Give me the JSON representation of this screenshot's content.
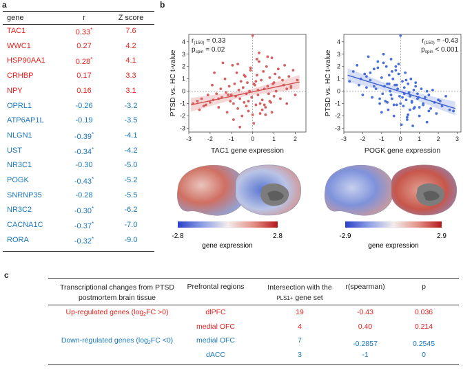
{
  "panel_labels": {
    "a": "a",
    "b": "b",
    "c": "c"
  },
  "colors": {
    "up": "#e8201c",
    "down": "#1a78be",
    "scatter_red": "#d65f5f",
    "scatter_blue": "#4a6fd9"
  },
  "table_a": {
    "headers": [
      "gene",
      "r",
      "Z score"
    ],
    "rows": [
      {
        "gene": "TAC1",
        "r": "0.33",
        "star": "*",
        "z": "7.6",
        "dir": "up"
      },
      {
        "gene": "WWC1",
        "r": "0.27",
        "star": "",
        "z": "4.2",
        "dir": "up"
      },
      {
        "gene": "HSP90AA1",
        "r": "0.28",
        "star": "*",
        "z": "4.1",
        "dir": "up"
      },
      {
        "gene": "CRHBP",
        "r": "0.17",
        "star": "",
        "z": "3.3",
        "dir": "up"
      },
      {
        "gene": "NPY",
        "r": "0.16",
        "star": "",
        "z": "3.1",
        "dir": "up"
      },
      {
        "gene": "OPRL1",
        "r": "-0.26",
        "star": "",
        "z": "-3.2",
        "dir": "down"
      },
      {
        "gene": "ATP6AP1L",
        "r": "-0.19",
        "star": "",
        "z": "-3.5",
        "dir": "down"
      },
      {
        "gene": "NLGN1",
        "r": "-0.39",
        "star": "*",
        "z": "-4.1",
        "dir": "down"
      },
      {
        "gene": "UST",
        "r": "-0.34",
        "star": "*",
        "z": "-4.2",
        "dir": "down"
      },
      {
        "gene": "NR3C1",
        "r": "-0.30",
        "star": "",
        "z": "-5.0",
        "dir": "down"
      },
      {
        "gene": "POGK",
        "r": "-0.43",
        "star": "*",
        "z": "-5.2",
        "dir": "down"
      },
      {
        "gene": "SNRNP35",
        "r": "-0.28",
        "star": "",
        "z": "-5.5",
        "dir": "down"
      },
      {
        "gene": "NR3C2",
        "r": "-0.30",
        "star": "*",
        "z": "-6.2",
        "dir": "down"
      },
      {
        "gene": "CACNA1C",
        "r": "-0.37",
        "star": "*",
        "z": "-7.0",
        "dir": "down"
      },
      {
        "gene": "RORA",
        "r": "-0.32",
        "star": "*",
        "z": "-9.0",
        "dir": "down"
      }
    ]
  },
  "chart_data": [
    {
      "type": "scatter",
      "title": "",
      "xlabel": "TAC1 gene expression",
      "ylabel": "PTSD vs. HC t-value",
      "xlim": [
        -3,
        2.5
      ],
      "ylim": [
        -3.3,
        4.6
      ],
      "xticks": [
        -3,
        -2,
        -1,
        0,
        1,
        2
      ],
      "yticks": [
        -3,
        -2,
        -1,
        0,
        1,
        2,
        3,
        4
      ],
      "annotation": {
        "r_label": "r",
        "r_sub": "(150)",
        "r_value": "= 0.33",
        "p_label": "p",
        "p_sub": "spin",
        "p_value": "= 0.02"
      },
      "fit": {
        "x": [
          -2.9,
          2.2
        ],
        "y": [
          -1.1,
          0.75
        ]
      },
      "x": [
        -2.8,
        -2.6,
        -2.5,
        -2.4,
        -2.3,
        -2.1,
        -2.0,
        -1.9,
        -1.85,
        -1.7,
        -1.6,
        -1.5,
        -1.45,
        -1.3,
        -1.25,
        -1.2,
        -1.1,
        -1.05,
        -1.0,
        -0.95,
        -0.9,
        -0.85,
        -0.8,
        -0.75,
        -0.7,
        -0.65,
        -0.6,
        -0.55,
        -0.5,
        -0.45,
        -0.4,
        -0.35,
        -0.3,
        -0.25,
        -0.2,
        -0.15,
        -0.1,
        -0.05,
        0.0,
        0.05,
        0.1,
        0.15,
        0.2,
        0.25,
        0.3,
        0.35,
        0.4,
        0.45,
        0.5,
        0.55,
        0.6,
        0.65,
        0.7,
        0.75,
        0.8,
        0.85,
        0.9,
        0.95,
        1.0,
        1.05,
        1.1,
        1.2,
        1.3,
        1.4,
        1.5,
        1.6,
        1.7,
        1.8,
        1.9,
        2.0,
        2.1,
        -1.4,
        -0.9,
        -0.3,
        0.2,
        0.6,
        1.0,
        -0.6,
        0.3,
        0.8,
        -1.8,
        -0.2,
        0.45,
        1.25,
        -1.15,
        0.0,
        0.7,
        -2.2,
        1.6,
        -0.7,
        0.15,
        0.9,
        -0.4,
        0.55,
        1.45,
        -1.6,
        0.05,
        0.35,
        -0.1,
        0.25,
        1.8
      ],
      "y": [
        -1.0,
        -0.8,
        -1.5,
        -0.6,
        -1.2,
        -0.3,
        -0.9,
        0.5,
        -0.7,
        -0.2,
        -1.3,
        0.2,
        -0.5,
        1.0,
        -0.1,
        -1.7,
        0.4,
        -0.8,
        -0.3,
        2.1,
        -1.0,
        0.6,
        -0.4,
        1.5,
        -1.4,
        0.1,
        -0.6,
        0.8,
        -2.0,
        0.3,
        -0.9,
        1.2,
        -0.2,
        0.7,
        -1.6,
        0.0,
        1.9,
        -0.5,
        4.5,
        -2.6,
        0.5,
        -1.1,
        1.3,
        -0.3,
        2.4,
        -1.8,
        0.9,
        -0.7,
        1.6,
        0.2,
        -1.3,
        2.0,
        0.4,
        -0.2,
        1.1,
        -0.9,
        2.7,
        0.6,
        -0.4,
        1.4,
        0.0,
        1.8,
        -0.6,
        0.9,
        2.1,
        -1.0,
        1.2,
        0.3,
        1.7,
        -0.3,
        0.9,
        2.3,
        -2.3,
        -1.2,
        2.6,
        -1.9,
        0.7,
        -2.9,
        3.1,
        -0.8,
        1.5,
        -0.8,
        -1.5,
        1.1,
        -0.3,
        -1.9,
        2.8,
        -1.1,
        0.2,
        2.2,
        0.8,
        -1.7,
        1.3,
        -1.1,
        0.5,
        -0.6,
        0.6,
        -1.0,
        1.7,
        0.1,
        0.4
      ]
    },
    {
      "type": "scatter",
      "title": "",
      "xlabel": "POGK gene expression",
      "ylabel": "PTSD vs. HC t-value",
      "xlim": [
        -3,
        3.2
      ],
      "ylim": [
        -3.3,
        4.6
      ],
      "xticks": [
        -3,
        -2,
        -1,
        0,
        1,
        2,
        3
      ],
      "yticks": [
        -3,
        -2,
        -1,
        0,
        1,
        2,
        3,
        4
      ],
      "annotation": {
        "r_label": "r",
        "r_sub": "(150)",
        "r_value": "= -0.43",
        "p_label": "p",
        "p_sub": "spin",
        "p_value": "< 0.001"
      },
      "fit": {
        "x": [
          -2.8,
          2.9
        ],
        "y": [
          1.3,
          -1.4
        ]
      },
      "x": [
        -2.7,
        -2.5,
        -2.3,
        -2.1,
        -2.0,
        -1.9,
        -1.8,
        -1.7,
        -1.6,
        -1.5,
        -1.4,
        -1.3,
        -1.2,
        -1.1,
        -1.0,
        -0.95,
        -0.9,
        -0.85,
        -0.8,
        -0.75,
        -0.7,
        -0.65,
        -0.6,
        -0.55,
        -0.5,
        -0.45,
        -0.4,
        -0.35,
        -0.3,
        -0.25,
        -0.2,
        -0.15,
        -0.1,
        -0.05,
        0.0,
        0.05,
        0.1,
        0.15,
        0.2,
        0.25,
        0.3,
        0.35,
        0.4,
        0.45,
        0.5,
        0.55,
        0.6,
        0.65,
        0.7,
        0.75,
        0.8,
        0.9,
        1.0,
        1.1,
        1.2,
        1.3,
        1.4,
        1.5,
        1.6,
        1.7,
        1.8,
        1.9,
        2.0,
        2.2,
        2.4,
        2.6,
        2.8,
        -1.6,
        -1.0,
        -0.5,
        0.0,
        0.3,
        0.9,
        -2.2,
        -0.7,
        0.4,
        1.2,
        -1.2,
        -0.2,
        0.6,
        1.5,
        -0.9,
        0.1,
        0.8,
        -1.4,
        -0.35,
        0.5,
        1.0,
        -0.6,
        0.2,
        -1.8,
        0.7,
        1.4,
        -0.1,
        0.35,
        2.1,
        -1.1,
        -0.45,
        0.95,
        -0.25
      ],
      "y": [
        0.8,
        1.6,
        2.1,
        1.0,
        -0.3,
        1.4,
        0.3,
        2.8,
        0.9,
        -0.5,
        1.8,
        0.2,
        2.4,
        -1.0,
        1.1,
        -0.2,
        3.0,
        0.4,
        -0.8,
        2.0,
        0.6,
        -1.5,
        1.3,
        0.0,
        2.6,
        -0.6,
        1.0,
        -2.0,
        0.5,
        1.7,
        -1.1,
        0.2,
        2.2,
        -0.4,
        4.5,
        -2.7,
        0.8,
        -1.2,
        0.3,
        1.5,
        -0.7,
        -2.3,
        0.6,
        -0.1,
        -1.5,
        1.0,
        -0.9,
        -2.8,
        0.1,
        -1.3,
        0.4,
        -0.6,
        -2.0,
        0.2,
        -1.1,
        -0.5,
        -2.5,
        -0.3,
        -1.4,
        0.1,
        -0.9,
        -1.8,
        -0.7,
        -1.2,
        -0.4,
        -1.5,
        -1.6,
        1.5,
        -1.7,
        -0.3,
        -1.0,
        0.9,
        -0.2,
        0.5,
        -0.9,
        -1.9,
        -1.0,
        1.9,
        0.5,
        -0.8,
        -1.6,
        2.3,
        -0.5,
        0.7,
        0.4,
        -1.1,
        -0.4,
        -1.3,
        0.6,
        -0.2,
        1.2,
        -1.4,
        0.0,
        1.4,
        -2.1,
        -0.8,
        -0.6,
        1.6,
        -0.5,
        2.0
      ]
    }
  ],
  "colorbars": [
    {
      "min": "-2.8",
      "max": "2.8",
      "label": "gene expression"
    },
    {
      "min": "-2.9",
      "max": "2.9",
      "label": "gene expression"
    }
  ],
  "table_c": {
    "headers": {
      "col1_line1": "Transcriptional changes from PTSD",
      "col1_line2": "postmortem brain tissue",
      "col2": "Prefrontal regions",
      "col3_line1": "Intersection with the",
      "col3_line2a": "PLS1+",
      "col3_line2b": " gene set",
      "col4": "r(spearman)",
      "col5": "p"
    },
    "groups": {
      "up_prefix": "Up-regulated genes (log",
      "up_sub": "2",
      "up_suffix": "FC >0)",
      "down_prefix": "Down-regulated genes (log",
      "down_sub": "2",
      "down_suffix": "FC <0)"
    },
    "rows": [
      {
        "region": "dlPFC",
        "n": "19",
        "r": "-0.43",
        "p": "0.036",
        "dir": "up"
      },
      {
        "region": "medial OFC",
        "n": "4",
        "r": "0.40",
        "p": "0.214",
        "dir": "up"
      },
      {
        "region": "medial OFC",
        "n": "7",
        "r": "-0.2857",
        "p": "0.2545",
        "dir": "down"
      },
      {
        "region": "dACC",
        "n": "3",
        "r": "-1",
        "p": "0",
        "dir": "down"
      }
    ]
  }
}
